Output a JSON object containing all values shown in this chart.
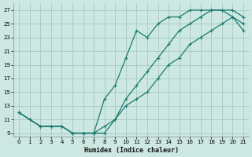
{
  "xlabel": "Humidex (Indice chaleur)",
  "bg_color": "#cce8e0",
  "grid_color": "#aacccc",
  "line_color": "#1a7a6e",
  "xlim": [
    -0.5,
    21.5
  ],
  "ylim": [
    8.5,
    28
  ],
  "xticks": [
    0,
    1,
    2,
    3,
    4,
    5,
    6,
    7,
    8,
    9,
    10,
    11,
    12,
    13,
    14,
    15,
    16,
    17,
    18,
    19,
    20,
    21
  ],
  "yticks": [
    9,
    11,
    13,
    15,
    17,
    19,
    21,
    23,
    25,
    27
  ],
  "series1_x": [
    0,
    1,
    2,
    3,
    4,
    5,
    6,
    7,
    8,
    9,
    10,
    11,
    12,
    13,
    14,
    15,
    16,
    17,
    18,
    19,
    20,
    21
  ],
  "series1_y": [
    12,
    11,
    10,
    10,
    10,
    9,
    9,
    9,
    10,
    11,
    13,
    14,
    15,
    17,
    19,
    20,
    22,
    23,
    24,
    25,
    26,
    25
  ],
  "series2_x": [
    0,
    1,
    2,
    3,
    4,
    5,
    6,
    7,
    8,
    9,
    10,
    11,
    12,
    13,
    14,
    15,
    16,
    17,
    18,
    19,
    20,
    21
  ],
  "series2_y": [
    12,
    11,
    10,
    10,
    10,
    9,
    9,
    9,
    14,
    16,
    20,
    24,
    23,
    25,
    26,
    26,
    27,
    27,
    27,
    27,
    26,
    24
  ],
  "series3_x": [
    0,
    2,
    3,
    4,
    5,
    6,
    7,
    8,
    9,
    10,
    11,
    12,
    13,
    14,
    15,
    16,
    17,
    18,
    19,
    20,
    21
  ],
  "series3_y": [
    12,
    10,
    10,
    10,
    9,
    9,
    9,
    9,
    11,
    14,
    16,
    18,
    20,
    22,
    24,
    25,
    26,
    27,
    27,
    27,
    26
  ]
}
